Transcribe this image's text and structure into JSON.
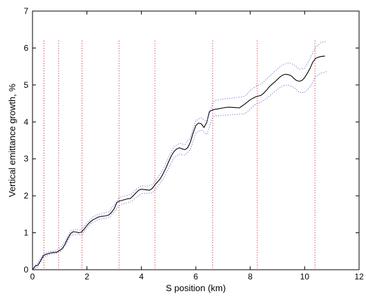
{
  "chart_data": {
    "type": "line",
    "title": "",
    "xlabel": "S position (km)",
    "ylabel": "Vertical emittance growth, %",
    "xlim": [
      0,
      12
    ],
    "ylim": [
      0,
      7
    ],
    "xticks": [
      0,
      2,
      4,
      6,
      8,
      10,
      12
    ],
    "yticks": [
      0,
      1,
      2,
      3,
      4,
      5,
      6,
      7
    ],
    "grid": false,
    "legend": "none",
    "colors": {
      "mean": "#000000",
      "bounds": "#5b5bd6",
      "markers": "#e0242c",
      "axes": "#000000"
    },
    "vertical_markers_x": [
      0.42,
      0.96,
      1.82,
      3.18,
      4.5,
      6.62,
      8.26,
      10.38
    ],
    "series": [
      {
        "role": "mean",
        "style": "solid",
        "x": [
          0,
          0.05,
          0.1,
          0.2,
          0.3,
          0.4,
          0.5,
          0.6,
          0.7,
          0.8,
          0.9,
          1.0,
          1.1,
          1.2,
          1.3,
          1.4,
          1.5,
          1.6,
          1.7,
          1.8,
          1.9,
          2.0,
          2.1,
          2.2,
          2.3,
          2.4,
          2.5,
          2.6,
          2.7,
          2.8,
          2.9,
          3.0,
          3.1,
          3.2,
          3.3,
          3.4,
          3.5,
          3.6,
          3.7,
          3.8,
          3.9,
          4.0,
          4.1,
          4.2,
          4.3,
          4.4,
          4.5,
          4.6,
          4.7,
          4.8,
          4.9,
          5.0,
          5.1,
          5.2,
          5.3,
          5.4,
          5.5,
          5.6,
          5.7,
          5.8,
          5.9,
          6.0,
          6.1,
          6.2,
          6.3,
          6.4,
          6.5,
          6.6,
          6.7,
          6.8,
          7.0,
          7.2,
          7.4,
          7.6,
          7.8,
          8.0,
          8.2,
          8.3,
          8.4,
          8.5,
          8.6,
          8.7,
          8.8,
          8.9,
          9.0,
          9.1,
          9.2,
          9.3,
          9.4,
          9.5,
          9.6,
          9.7,
          9.8,
          9.9,
          10.0,
          10.1,
          10.2,
          10.3,
          10.4,
          10.5,
          10.6,
          10.7,
          10.75
        ],
        "y": [
          0.0,
          0.05,
          0.1,
          0.13,
          0.25,
          0.38,
          0.42,
          0.44,
          0.46,
          0.47,
          0.48,
          0.52,
          0.58,
          0.7,
          0.85,
          0.98,
          1.03,
          1.02,
          1.0,
          1.02,
          1.1,
          1.2,
          1.28,
          1.34,
          1.38,
          1.42,
          1.44,
          1.45,
          1.46,
          1.48,
          1.55,
          1.65,
          1.82,
          1.86,
          1.88,
          1.9,
          1.92,
          1.93,
          2.0,
          2.08,
          2.15,
          2.18,
          2.17,
          2.16,
          2.15,
          2.2,
          2.3,
          2.38,
          2.47,
          2.6,
          2.75,
          2.92,
          3.08,
          3.2,
          3.27,
          3.3,
          3.27,
          3.25,
          3.3,
          3.45,
          3.7,
          3.9,
          3.97,
          3.95,
          3.85,
          3.98,
          4.28,
          4.32,
          4.34,
          4.35,
          4.38,
          4.4,
          4.39,
          4.38,
          4.48,
          4.6,
          4.68,
          4.7,
          4.72,
          4.78,
          4.86,
          4.95,
          5.02,
          5.08,
          5.15,
          5.22,
          5.27,
          5.29,
          5.28,
          5.25,
          5.18,
          5.12,
          5.1,
          5.12,
          5.2,
          5.32,
          5.45,
          5.62,
          5.72,
          5.75,
          5.77,
          5.78,
          5.78
        ]
      },
      {
        "role": "upper-bound",
        "style": "dotted",
        "x": [
          0,
          0.2,
          0.4,
          0.6,
          0.8,
          1.0,
          1.2,
          1.4,
          1.6,
          1.8,
          2.0,
          2.2,
          2.4,
          2.6,
          2.8,
          3.0,
          3.2,
          3.4,
          3.6,
          3.8,
          4.0,
          4.2,
          4.4,
          4.6,
          4.8,
          5.0,
          5.2,
          5.4,
          5.6,
          5.8,
          6.0,
          6.2,
          6.4,
          6.6,
          6.7,
          7.0,
          7.4,
          7.8,
          8.0,
          8.2,
          8.4,
          8.6,
          8.8,
          9.0,
          9.2,
          9.4,
          9.6,
          9.8,
          10.0,
          10.2,
          10.4,
          10.6,
          10.8
        ],
        "y": [
          0.02,
          0.2,
          0.42,
          0.49,
          0.51,
          0.58,
          0.76,
          1.05,
          1.09,
          1.08,
          1.27,
          1.42,
          1.49,
          1.53,
          1.57,
          1.75,
          1.96,
          2.0,
          2.03,
          2.17,
          2.27,
          2.26,
          2.3,
          2.49,
          2.72,
          3.04,
          3.33,
          3.42,
          3.39,
          3.57,
          4.04,
          4.11,
          4.0,
          4.46,
          4.58,
          4.62,
          4.65,
          4.69,
          4.85,
          4.96,
          5.02,
          5.16,
          5.3,
          5.43,
          5.55,
          5.6,
          5.55,
          5.42,
          5.45,
          5.72,
          6.02,
          6.15,
          6.18
        ]
      },
      {
        "role": "lower-bound",
        "style": "dotted",
        "x": [
          0,
          0.2,
          0.4,
          0.6,
          0.8,
          1.0,
          1.2,
          1.4,
          1.6,
          1.8,
          2.0,
          2.2,
          2.4,
          2.6,
          2.8,
          3.0,
          3.2,
          3.4,
          3.6,
          3.8,
          4.0,
          4.2,
          4.4,
          4.6,
          4.8,
          5.0,
          5.2,
          5.4,
          5.6,
          5.8,
          6.0,
          6.2,
          6.4,
          6.6,
          6.7,
          7.0,
          7.4,
          7.8,
          8.0,
          8.2,
          8.4,
          8.6,
          8.8,
          9.0,
          9.2,
          9.4,
          9.6,
          9.8,
          10.0,
          10.2,
          10.4,
          10.6,
          10.8
        ],
        "y": [
          0.0,
          0.08,
          0.34,
          0.41,
          0.44,
          0.47,
          0.64,
          0.92,
          0.96,
          0.94,
          1.13,
          1.28,
          1.35,
          1.38,
          1.41,
          1.57,
          1.74,
          1.8,
          1.83,
          1.95,
          2.06,
          2.07,
          2.08,
          2.26,
          2.45,
          2.74,
          3.04,
          3.13,
          3.1,
          3.25,
          3.7,
          3.78,
          3.66,
          4.1,
          4.16,
          4.18,
          4.2,
          4.22,
          4.35,
          4.48,
          4.54,
          4.63,
          4.76,
          4.88,
          4.98,
          5.0,
          4.94,
          4.8,
          4.8,
          4.95,
          5.22,
          5.32,
          5.36
        ]
      }
    ]
  }
}
